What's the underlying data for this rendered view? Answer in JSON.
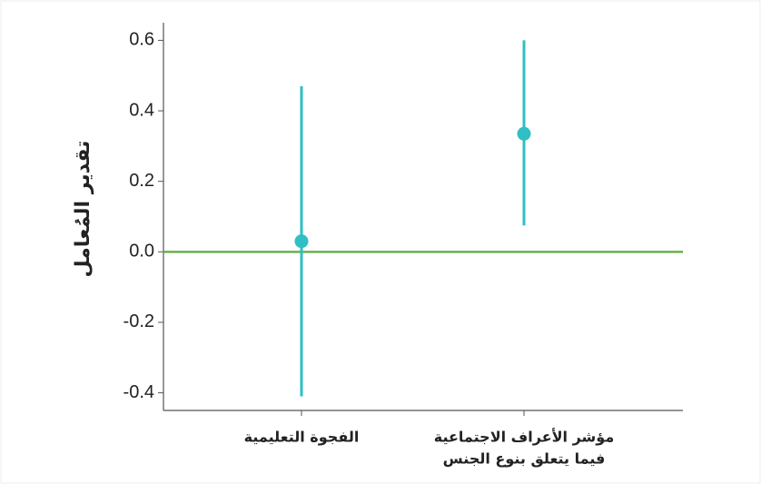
{
  "chart_data": {
    "type": "errorbar",
    "y_label": "تقدير المُعامل",
    "categories": [
      [
        "الفجوة التعليمية"
      ],
      [
        "مؤشر الأعراف الاجتماعية",
        "فيما يتعلق بنوع الجنس"
      ]
    ],
    "values": [
      0.03,
      0.335
    ],
    "ci_low": [
      -0.41,
      0.075
    ],
    "ci_high": [
      0.47,
      0.6
    ],
    "color": "#2fbfc4",
    "reference_line": {
      "value": 0,
      "color": "#6ab04c"
    },
    "ylim": [
      -0.45,
      0.65
    ],
    "yticks": [
      -0.4,
      -0.2,
      {
        "value": 0,
        "label": "0.0"
      },
      0.2,
      0.4,
      0.6
    ]
  }
}
